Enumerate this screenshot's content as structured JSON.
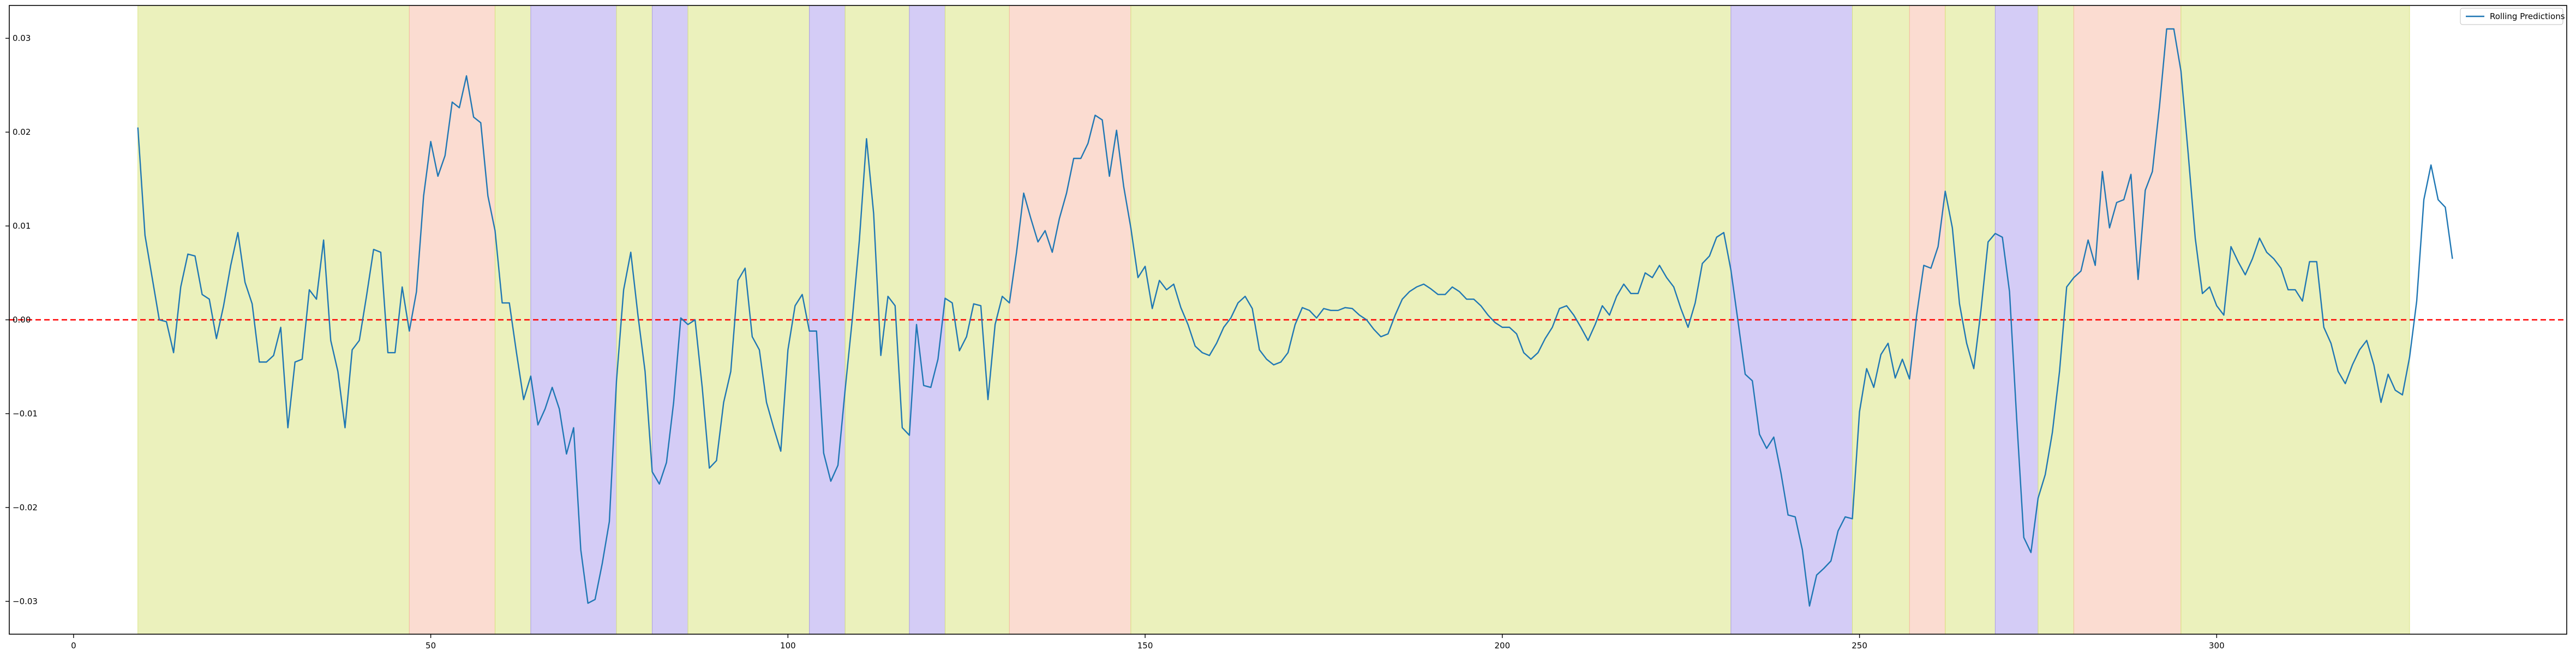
{
  "chart_data": {
    "type": "line",
    "title": "",
    "xlabel": "",
    "ylabel": "",
    "xlim": [
      -9,
      349
    ],
    "ylim": [
      -0.0335,
      0.0335
    ],
    "x_ticks": [
      0,
      50,
      100,
      150,
      200,
      250,
      300
    ],
    "x_tick_labels": [
      "0",
      "50",
      "100",
      "150",
      "200",
      "250",
      "300"
    ],
    "y_ticks": [
      -0.03,
      -0.02,
      -0.01,
      0.0,
      0.01,
      0.02,
      0.03
    ],
    "y_tick_labels": [
      "−0.03",
      "−0.02",
      "−0.01",
      "0.00",
      "0.01",
      "0.02",
      "0.03"
    ],
    "grid": false,
    "legend": {
      "location": "top-right",
      "entries": [
        "Rolling Predictions"
      ]
    },
    "reference_line": {
      "y": 0.0,
      "color": "#ff0000",
      "style": "dashed"
    },
    "regime_colors": {
      "green": "#d7e37a",
      "red": "#f7b9a3",
      "blue": "#a999ee"
    },
    "regimes": [
      {
        "start": 9,
        "end": 47,
        "color": "green"
      },
      {
        "start": 47,
        "end": 59,
        "color": "red"
      },
      {
        "start": 59,
        "end": 64,
        "color": "green"
      },
      {
        "start": 64,
        "end": 76,
        "color": "blue"
      },
      {
        "start": 76,
        "end": 81,
        "color": "green"
      },
      {
        "start": 81,
        "end": 86,
        "color": "blue"
      },
      {
        "start": 86,
        "end": 103,
        "color": "green"
      },
      {
        "start": 103,
        "end": 108,
        "color": "blue"
      },
      {
        "start": 108,
        "end": 117,
        "color": "green"
      },
      {
        "start": 117,
        "end": 122,
        "color": "blue"
      },
      {
        "start": 122,
        "end": 131,
        "color": "green"
      },
      {
        "start": 131,
        "end": 148,
        "color": "red"
      },
      {
        "start": 148,
        "end": 232,
        "color": "green"
      },
      {
        "start": 232,
        "end": 249,
        "color": "blue"
      },
      {
        "start": 249,
        "end": 257,
        "color": "green"
      },
      {
        "start": 257,
        "end": 262,
        "color": "red"
      },
      {
        "start": 262,
        "end": 269,
        "color": "green"
      },
      {
        "start": 269,
        "end": 275,
        "color": "blue"
      },
      {
        "start": 275,
        "end": 280,
        "color": "green"
      },
      {
        "start": 280,
        "end": 295,
        "color": "red"
      },
      {
        "start": 295,
        "end": 327,
        "color": "green"
      }
    ],
    "series": [
      {
        "name": "Rolling Predictions",
        "color": "#1f77b4",
        "x_start": 9,
        "values": [
          0.0205,
          0.009,
          0.0045,
          0.0,
          -0.0002,
          -0.0035,
          0.0035,
          0.007,
          0.0068,
          0.0027,
          0.0022,
          -0.002,
          0.0015,
          0.0058,
          0.0093,
          0.004,
          0.0017,
          -0.0045,
          -0.0045,
          -0.0038,
          -0.0008,
          -0.0115,
          -0.0045,
          -0.0042,
          0.0032,
          0.0022,
          0.0085,
          -0.0022,
          -0.0055,
          -0.0115,
          -0.0032,
          -0.0022,
          0.0025,
          0.0075,
          0.0072,
          -0.0035,
          -0.0035,
          0.0035,
          -0.0012,
          0.003,
          0.0132,
          0.019,
          0.0153,
          0.0175,
          0.0232,
          0.0226,
          0.026,
          0.0216,
          0.021,
          0.0132,
          0.0095,
          0.0018,
          0.0018,
          -0.0035,
          -0.0085,
          -0.006,
          -0.0112,
          -0.0095,
          -0.0072,
          -0.0095,
          -0.0143,
          -0.0115,
          -0.0245,
          -0.0302,
          -0.0298,
          -0.026,
          -0.0215,
          -0.0065,
          0.0032,
          0.0072,
          0.0005,
          -0.0055,
          -0.0162,
          -0.0175,
          -0.0152,
          -0.0088,
          0.0002,
          -0.0005,
          0.0,
          -0.0072,
          -0.0158,
          -0.015,
          -0.0088,
          -0.0055,
          0.0042,
          0.0055,
          -0.0018,
          -0.0032,
          -0.0088,
          -0.0115,
          -0.014,
          -0.0032,
          0.0015,
          0.0027,
          -0.0012,
          -0.0012,
          -0.0142,
          -0.0172,
          -0.0155,
          -0.0075,
          0.0,
          0.0085,
          0.0193,
          0.0113,
          -0.0038,
          0.0025,
          0.0015,
          -0.0115,
          -0.0123,
          -0.0005,
          -0.007,
          -0.0072,
          -0.0042,
          0.0023,
          0.0018,
          -0.0033,
          -0.0018,
          0.0017,
          0.0015,
          -0.0085,
          -0.0005,
          0.0025,
          0.0018,
          0.0072,
          0.0135,
          0.0108,
          0.0083,
          0.0095,
          0.0072,
          0.0108,
          0.0135,
          0.0172,
          0.0172,
          0.0188,
          0.0218,
          0.0213,
          0.0153,
          0.0202,
          0.0142,
          0.0098,
          0.0045,
          0.0057,
          0.0012,
          0.0042,
          0.0032,
          0.0038,
          0.0013,
          -0.0005,
          -0.0028,
          -0.0035,
          -0.0038,
          -0.0025,
          -0.0008,
          0.0002,
          0.0018,
          0.0025,
          0.0012,
          -0.0032,
          -0.0042,
          -0.0048,
          -0.0045,
          -0.0035,
          -0.0005,
          0.0013,
          0.001,
          0.0002,
          0.0012,
          0.001,
          0.001,
          0.0013,
          0.0012,
          0.0005,
          0.0,
          -0.001,
          -0.0018,
          -0.0015,
          0.0005,
          0.0022,
          0.003,
          0.0035,
          0.0038,
          0.0033,
          0.0027,
          0.0027,
          0.0035,
          0.003,
          0.0022,
          0.0022,
          0.0015,
          0.0005,
          -0.0003,
          -0.0008,
          -0.0008,
          -0.0015,
          -0.0035,
          -0.0042,
          -0.0035,
          -0.002,
          -0.0008,
          0.0012,
          0.0015,
          0.0005,
          -0.0008,
          -0.0022,
          -0.0005,
          0.0015,
          0.0005,
          0.0025,
          0.0038,
          0.0028,
          0.0028,
          0.005,
          0.0045,
          0.0058,
          0.0045,
          0.0035,
          0.0012,
          -0.0008,
          0.0018,
          0.006,
          0.0068,
          0.0088,
          0.0093,
          0.0053,
          -0.0002,
          -0.0058,
          -0.0065,
          -0.0122,
          -0.0137,
          -0.0125,
          -0.0163,
          -0.0208,
          -0.021,
          -0.0245,
          -0.0305,
          -0.0272,
          -0.0265,
          -0.0257,
          -0.0225,
          -0.021,
          -0.0212,
          -0.0098,
          -0.0052,
          -0.0072,
          -0.0037,
          -0.0025,
          -0.0062,
          -0.0042,
          -0.0063,
          0.0005,
          0.0058,
          0.0055,
          0.0078,
          0.0137,
          0.0098,
          0.0017,
          -0.0025,
          -0.0052,
          0.001,
          0.0083,
          0.0092,
          0.0088,
          0.003,
          -0.0105,
          -0.0232,
          -0.0248,
          -0.019,
          -0.0165,
          -0.012,
          -0.0055,
          0.0035,
          0.0045,
          0.0052,
          0.0085,
          0.0058,
          0.0158,
          0.0098,
          0.0125,
          0.0128,
          0.0155,
          0.0043,
          0.0138,
          0.0158,
          0.0228,
          0.031,
          0.031,
          0.0265,
          0.0178,
          0.0087,
          0.0028,
          0.0035,
          0.0015,
          0.0005,
          0.0078,
          0.0062,
          0.0048,
          0.0065,
          0.0087,
          0.0072,
          0.0065,
          0.0055,
          0.0032,
          0.0032,
          0.002,
          0.0062,
          0.0062,
          -0.0008,
          -0.0025,
          -0.0055,
          -0.0068,
          -0.0048,
          -0.0032,
          -0.0022,
          -0.0048,
          -0.0088,
          -0.0058,
          -0.0075,
          -0.008,
          -0.004,
          0.002,
          0.0128,
          0.0165,
          0.0128,
          0.012,
          0.0065
        ]
      }
    ]
  }
}
